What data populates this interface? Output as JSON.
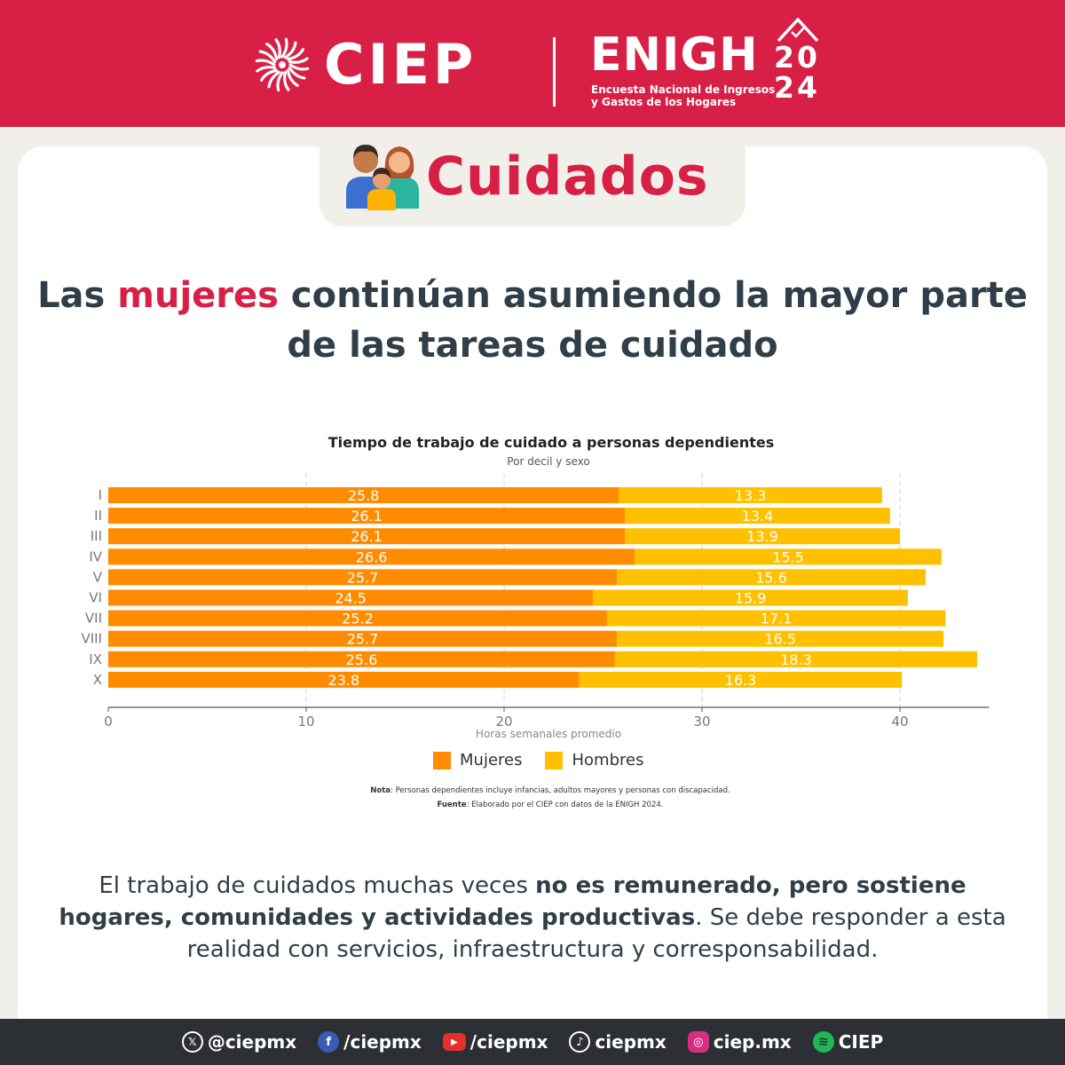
{
  "header": {
    "ciep_label": "CIEP",
    "enigh_title": "ENIGH",
    "enigh_year_top": "20",
    "enigh_year_bottom": "24",
    "enigh_subtitle_1": "Encuesta Nacional de Ingresos",
    "enigh_subtitle_2": "y Gastos de los Hogares"
  },
  "section": {
    "title": "Cuidados"
  },
  "headline": {
    "part1": "Las ",
    "accent": "mujeres",
    "part2": " continúan asumiendo la mayor parte",
    "line2": "de las tareas de cuidado"
  },
  "chart_data": {
    "type": "bar",
    "orientation": "horizontal",
    "stacked": true,
    "title": "Tiempo de trabajo de cuidado a personas dependientes",
    "subtitle": "Por decil y sexo",
    "xlabel": "Horas semanales promedio",
    "categories": [
      "I",
      "II",
      "III",
      "IV",
      "V",
      "VI",
      "VII",
      "VIII",
      "IX",
      "X"
    ],
    "series": [
      {
        "name": "Mujeres",
        "color": "#ff8c00",
        "values": [
          25.8,
          26.1,
          26.1,
          26.6,
          25.7,
          24.5,
          25.2,
          25.7,
          25.6,
          23.8
        ]
      },
      {
        "name": "Hombres",
        "color": "#ffc000",
        "values": [
          13.3,
          13.4,
          13.9,
          15.5,
          15.6,
          15.9,
          17.1,
          16.5,
          18.3,
          16.3
        ]
      }
    ],
    "xlim": [
      0,
      44.5
    ],
    "xticks": [
      0,
      10,
      20,
      30,
      40
    ],
    "grid": true,
    "legend": "bottom"
  },
  "chart_notes": {
    "nota_label": "Nota",
    "nota_text": ": Personas dependientes incluye infancias, adultos mayores y personas con discapacidad.",
    "fuente_label": "Fuente",
    "fuente_text": ": Elaborado por el CIEP con datos de la ENIGH 2024."
  },
  "paragraph": {
    "p1": "El trabajo de cuidados muchas veces ",
    "b1": "no es remunerado, pero sostiene hogares, comunidades y actividades productivas",
    "p2": ". Se debe responder a esta realidad con servicios, infraestructura y corresponsabilidad."
  },
  "footer": {
    "items": [
      {
        "icon": "x-icon",
        "label": "@ciepmx"
      },
      {
        "icon": "facebook-icon",
        "label": "/ciepmx"
      },
      {
        "icon": "youtube-icon",
        "label": "/ciepmx"
      },
      {
        "icon": "tiktok-icon",
        "label": "ciepmx"
      },
      {
        "icon": "instagram-icon",
        "label": "ciep.mx"
      },
      {
        "icon": "spotify-icon",
        "label": "CIEP"
      }
    ]
  },
  "colors": {
    "brand_red": "#d81f45",
    "mujeres": "#ff8c00",
    "hombres": "#ffc000",
    "text_dark": "#2f3e48",
    "footer_bg": "#2c3034"
  }
}
